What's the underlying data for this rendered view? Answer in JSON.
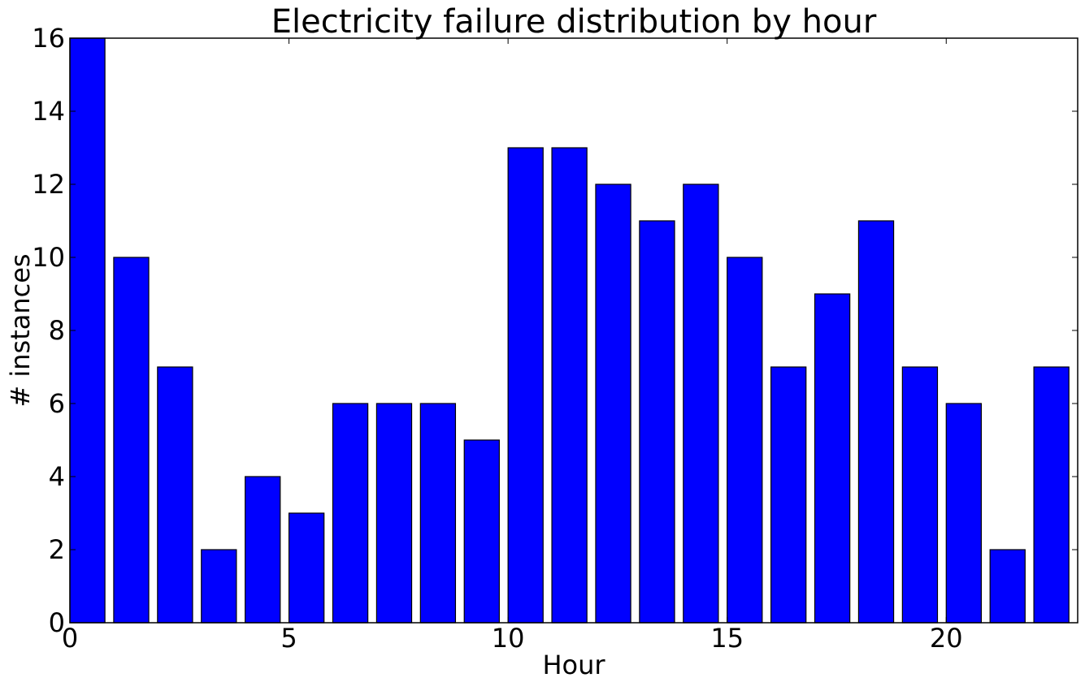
{
  "chart_data": {
    "type": "bar",
    "title": "Electricity failure distribution by hour",
    "xlabel": "Hour",
    "ylabel": "# instances",
    "x": [
      0,
      1,
      2,
      3,
      4,
      5,
      6,
      7,
      8,
      9,
      10,
      11,
      12,
      13,
      14,
      15,
      16,
      17,
      18,
      19,
      20,
      21,
      22
    ],
    "values": [
      16,
      10,
      7,
      2,
      4,
      3,
      6,
      6,
      6,
      5,
      13,
      13,
      12,
      11,
      12,
      10,
      7,
      9,
      11,
      7,
      6,
      2,
      7
    ],
    "bar_width": 0.8,
    "xlim": [
      0,
      23
    ],
    "ylim": [
      0,
      16
    ],
    "xticks": [
      0,
      5,
      10,
      15,
      20
    ],
    "yticks": [
      0,
      2,
      4,
      6,
      8,
      10,
      12,
      14,
      16
    ],
    "bar_color": "#0000ff",
    "edge_color": "#000000",
    "grid": false,
    "legend": false
  }
}
